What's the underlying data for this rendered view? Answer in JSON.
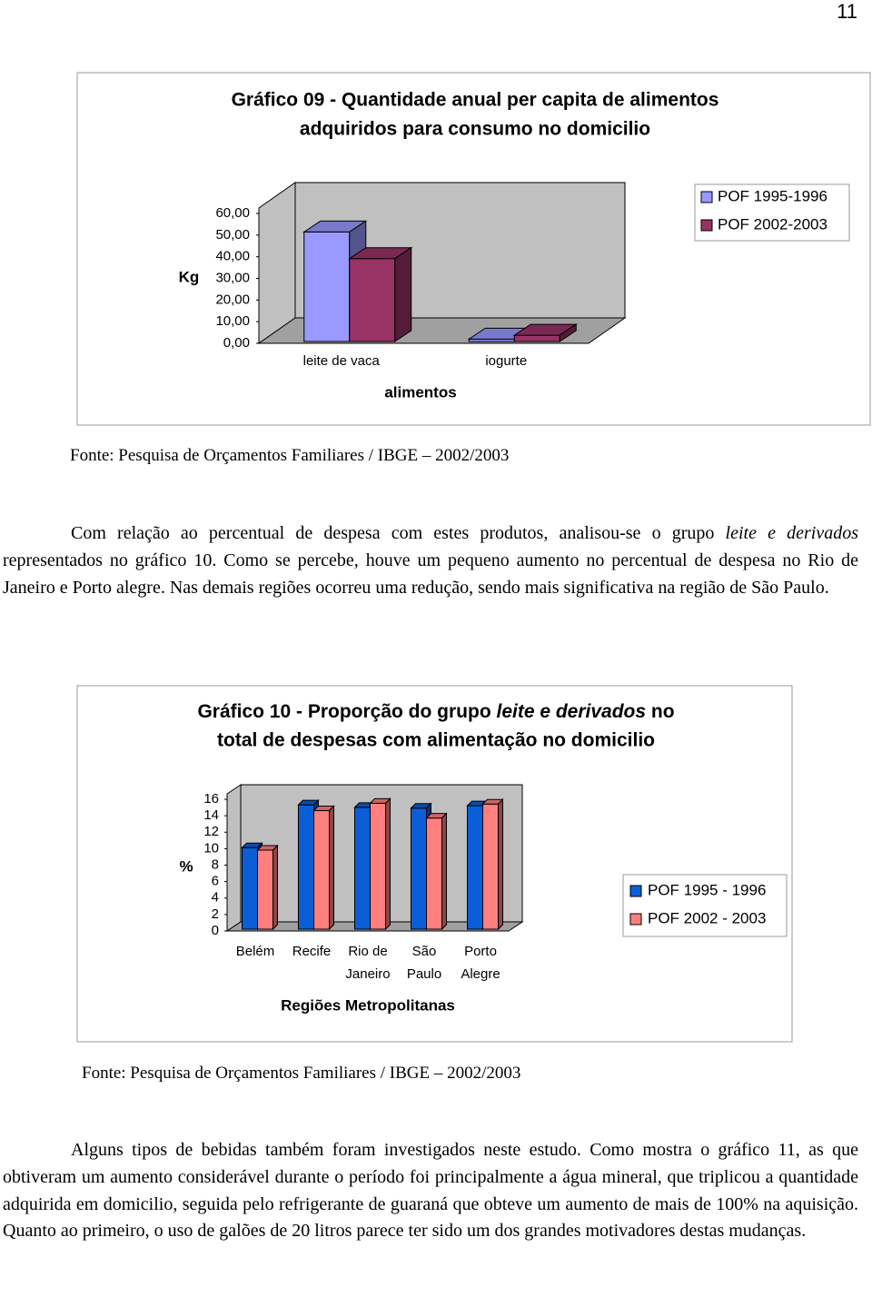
{
  "page_number": "11",
  "chart_data": [
    {
      "type": "bar3d",
      "title": [
        "Gráfico 09 - Quantidade anual per capita de alimentos",
        "adquiridos para consumo no domicilio"
      ],
      "y_label": "Kg",
      "x_label": "alimentos",
      "categories": [
        "leite de vaca",
        "iogurte"
      ],
      "series": [
        {
          "name": "POF 1995-1996",
          "color": "#9999ff",
          "values": [
            50.6,
            1.1
          ]
        },
        {
          "name": "POF 2002-2003",
          "color": "#993366",
          "values": [
            38.3,
            2.9
          ]
        }
      ],
      "ylim": [
        0,
        60
      ],
      "yticks": [
        {
          "value": 0,
          "label": "0,00"
        },
        {
          "value": 10,
          "label": "10,00"
        },
        {
          "value": 20,
          "label": "20,00"
        },
        {
          "value": 30,
          "label": "30,00"
        },
        {
          "value": 40,
          "label": "40,00"
        },
        {
          "value": 50,
          "label": "50,00"
        },
        {
          "value": 60,
          "label": "60,00"
        }
      ]
    },
    {
      "type": "bar3d",
      "title": [
        "Gráfico 10 - Proporção do grupo ",
        "leite e derivados",
        " no",
        "total de despesas com alimentação no domicilio"
      ],
      "y_label": "%",
      "x_label": "Regiões Metropolitanas",
      "categories": [
        [
          "Belém"
        ],
        [
          "Recife"
        ],
        [
          "Rio de",
          "Janeiro"
        ],
        [
          "São",
          "Paulo"
        ],
        [
          "Porto",
          "Alegre"
        ]
      ],
      "series": [
        {
          "name": "POF 1995 - 1996",
          "color": "#0a5fd8",
          "values": [
            9.9,
            15.1,
            14.8,
            14.7,
            15.0
          ]
        },
        {
          "name": "POF 2002 - 2003",
          "color": "#ff7f7f",
          "values": [
            9.6,
            14.4,
            15.3,
            13.5,
            15.2
          ]
        }
      ],
      "ylim": [
        0,
        16
      ],
      "yticks": [
        0,
        2,
        4,
        6,
        8,
        10,
        12,
        14,
        16
      ]
    }
  ],
  "sources": [
    "Fonte: Pesquisa de Orçamentos Familiares / IBGE – 2002/2003",
    "Fonte: Pesquisa de Orçamentos Familiares / IBGE – 2002/2003"
  ],
  "paragraphs": [
    [
      "Com relação ao percentual de despesa com estes produtos, analisou-se o grupo ",
      "leite e derivados",
      " representados no gráfico 10. Como se percebe, houve um pequeno aumento no percentual de despesa no Rio de Janeiro e Porto alegre. Nas demais regiões ocorreu uma redução, sendo mais significativa na região de São Paulo."
    ],
    [
      "Alguns tipos de bebidas também foram investigados neste estudo. Como mostra o gráfico 11, as que obtiveram um aumento considerável durante o período foi principalmente a água mineral, que triplicou a quantidade adquirida em domicilio, seguida pelo refrigerante de guaraná que obteve um aumento de mais de 100% na aquisição. Quanto ao primeiro, o uso de galões de 20 litros parece ter sido um dos grandes motivadores destas mudanças."
    ]
  ]
}
